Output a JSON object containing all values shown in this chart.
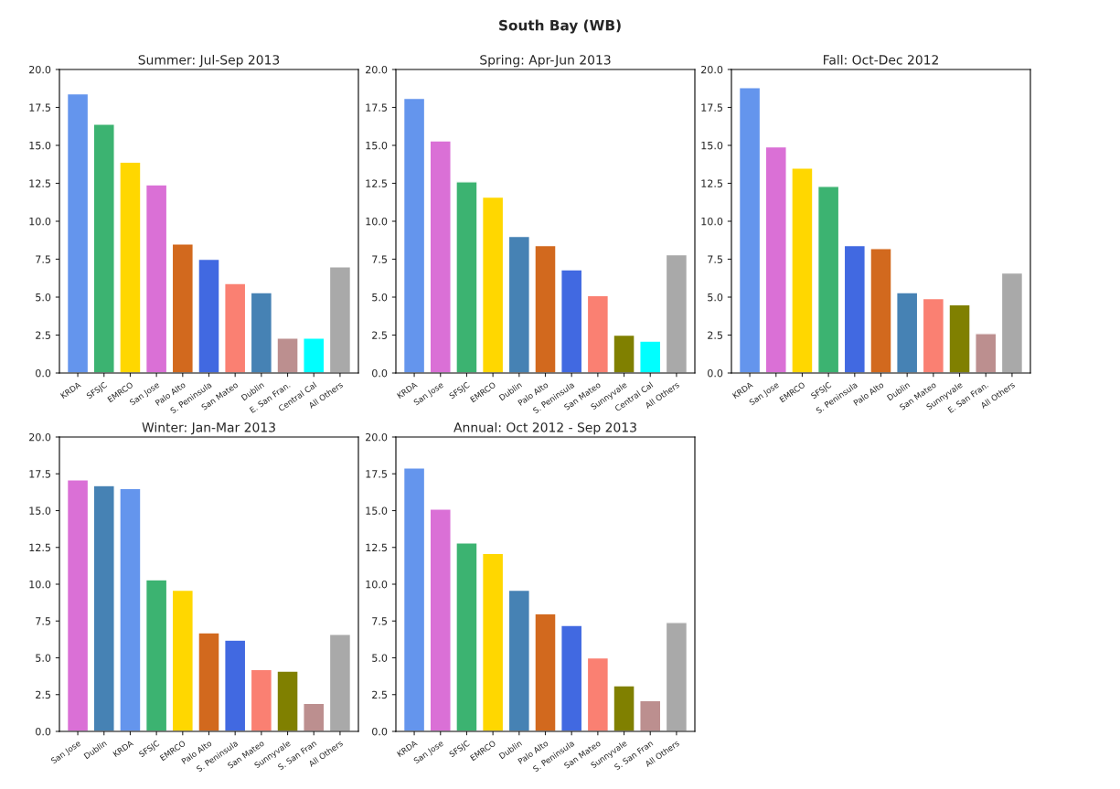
{
  "chart_data": [
    {
      "type": "bar",
      "title": "Summer: Jul-Sep 2013",
      "annotations": [
        "South Bay (WB)"
      ],
      "categories": [
        "KRDA",
        "SFSJC",
        "EMRCO",
        "San Jose",
        "Palo Alto",
        "S. Peninsula",
        "San Mateo",
        "Dublin",
        "E. San Fran.",
        "Central Cal",
        "All Others"
      ],
      "values": [
        18.4,
        16.4,
        13.9,
        12.4,
        8.5,
        7.5,
        5.9,
        5.3,
        2.3,
        2.3,
        7.0
      ],
      "colors": [
        "#6495ed",
        "#3cb371",
        "#ffd700",
        "#da70d6",
        "#d2691e",
        "#4169e1",
        "#fa8072",
        "#4682b4",
        "#bc8f8f",
        "#00ffff",
        "#a9a9a9"
      ],
      "ylim": [
        0,
        20
      ],
      "yticks": [
        {
          "value": 0,
          "label": "0.0"
        },
        {
          "value": 2.5,
          "label": "2.5"
        },
        {
          "value": 5,
          "label": "5.0"
        },
        {
          "value": 7.5,
          "label": "7.5"
        },
        {
          "value": 10,
          "label": "10.0"
        },
        {
          "value": 12.5,
          "label": "12.5"
        },
        {
          "value": 15,
          "label": "15.0"
        },
        {
          "value": 17.5,
          "label": "17.5"
        },
        {
          "value": 20,
          "label": "20.0"
        }
      ]
    },
    {
      "type": "bar",
      "title": "Spring: Apr-Jun 2013",
      "categories": [
        "KRDA",
        "San Jose",
        "SFSJC",
        "EMRCO",
        "Dublin",
        "Palo Alto",
        "S. Peninsula",
        "San Mateo",
        "Sunnyvale",
        "Central Cal",
        "All Others"
      ],
      "values": [
        18.1,
        15.3,
        12.6,
        11.6,
        9.0,
        8.4,
        6.8,
        5.1,
        2.5,
        2.1,
        7.8
      ],
      "colors": [
        "#6495ed",
        "#da70d6",
        "#3cb371",
        "#ffd700",
        "#4682b4",
        "#d2691e",
        "#4169e1",
        "#fa8072",
        "#808000",
        "#00ffff",
        "#a9a9a9"
      ],
      "ylim": [
        0,
        20
      ],
      "yticks": [
        {
          "value": 0,
          "label": "0.0"
        },
        {
          "value": 2.5,
          "label": "2.5"
        },
        {
          "value": 5,
          "label": "5.0"
        },
        {
          "value": 7.5,
          "label": "7.5"
        },
        {
          "value": 10,
          "label": "10.0"
        },
        {
          "value": 12.5,
          "label": "12.5"
        },
        {
          "value": 15,
          "label": "15.0"
        },
        {
          "value": 17.5,
          "label": "17.5"
        },
        {
          "value": 20,
          "label": "20.0"
        }
      ]
    },
    {
      "type": "bar",
      "title": "Fall: Oct-Dec 2012",
      "categories": [
        "KRDA",
        "San Jose",
        "EMRCO",
        "SFSJC",
        "S. Peninsula",
        "Palo Alto",
        "Dublin",
        "San Mateo",
        "Sunnyvale",
        "E. San Fran.",
        "All Others"
      ],
      "values": [
        18.8,
        14.9,
        13.5,
        12.3,
        8.4,
        8.2,
        5.3,
        4.9,
        4.5,
        2.6,
        6.6
      ],
      "colors": [
        "#6495ed",
        "#da70d6",
        "#ffd700",
        "#3cb371",
        "#4169e1",
        "#d2691e",
        "#4682b4",
        "#fa8072",
        "#808000",
        "#bc8f8f",
        "#a9a9a9"
      ],
      "ylim": [
        0,
        20
      ],
      "yticks": [
        {
          "value": 0,
          "label": "0.0"
        },
        {
          "value": 2.5,
          "label": "2.5"
        },
        {
          "value": 5,
          "label": "5.0"
        },
        {
          "value": 7.5,
          "label": "7.5"
        },
        {
          "value": 10,
          "label": "10.0"
        },
        {
          "value": 12.5,
          "label": "12.5"
        },
        {
          "value": 15,
          "label": "15.0"
        },
        {
          "value": 17.5,
          "label": "17.5"
        },
        {
          "value": 20,
          "label": "20.0"
        }
      ]
    },
    {
      "type": "bar",
      "title": "Winter: Jan-Mar 2013",
      "categories": [
        "San Jose",
        "Dublin",
        "KRDA",
        "SFSJC",
        "EMRCO",
        "Palo Alto",
        "S. Peninsula",
        "San Mateo",
        "Sunnyvale",
        "S. San Fran",
        "All Others"
      ],
      "values": [
        17.1,
        16.7,
        16.5,
        10.3,
        9.6,
        6.7,
        6.2,
        4.2,
        4.1,
        1.9,
        6.6
      ],
      "colors": [
        "#da70d6",
        "#4682b4",
        "#6495ed",
        "#3cb371",
        "#ffd700",
        "#d2691e",
        "#4169e1",
        "#fa8072",
        "#808000",
        "#bc8f8f",
        "#a9a9a9"
      ],
      "ylim": [
        0,
        20
      ],
      "yticks": [
        {
          "value": 0,
          "label": "0.0"
        },
        {
          "value": 2.5,
          "label": "2.5"
        },
        {
          "value": 5,
          "label": "5.0"
        },
        {
          "value": 7.5,
          "label": "7.5"
        },
        {
          "value": 10,
          "label": "10.0"
        },
        {
          "value": 12.5,
          "label": "12.5"
        },
        {
          "value": 15,
          "label": "15.0"
        },
        {
          "value": 17.5,
          "label": "17.5"
        },
        {
          "value": 20,
          "label": "20.0"
        }
      ]
    },
    {
      "type": "bar",
      "title": "Annual: Oct 2012 - Sep 2013",
      "categories": [
        "KRDA",
        "San Jose",
        "SFSJC",
        "EMRCO",
        "Dublin",
        "Palo Alto",
        "S. Peninsula",
        "San Mateo",
        "Sunnyvale",
        "S. San Fran",
        "All Others"
      ],
      "values": [
        17.9,
        15.1,
        12.8,
        12.1,
        9.6,
        8.0,
        7.2,
        5.0,
        3.1,
        2.1,
        7.4
      ],
      "colors": [
        "#6495ed",
        "#da70d6",
        "#3cb371",
        "#ffd700",
        "#4682b4",
        "#d2691e",
        "#4169e1",
        "#fa8072",
        "#808000",
        "#bc8f8f",
        "#a9a9a9"
      ],
      "ylim": [
        0,
        20
      ],
      "yticks": [
        {
          "value": 0,
          "label": "0.0"
        },
        {
          "value": 2.5,
          "label": "2.5"
        },
        {
          "value": 5,
          "label": "5.0"
        },
        {
          "value": 7.5,
          "label": "7.5"
        },
        {
          "value": 10,
          "label": "10.0"
        },
        {
          "value": 12.5,
          "label": "12.5"
        },
        {
          "value": 15,
          "label": "15.0"
        },
        {
          "value": 17.5,
          "label": "17.5"
        },
        {
          "value": 20,
          "label": "20.0"
        }
      ]
    }
  ]
}
